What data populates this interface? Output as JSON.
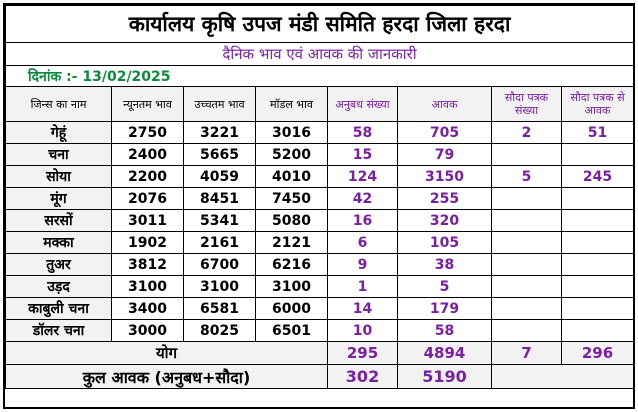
{
  "header": {
    "title": "कार्यालय कृषि उपज मंडी समिति हरदा जिला हरदा",
    "subtitle": "दैनिक भाव एवं आवक की जानकारी",
    "date_label": "दिनांक :- 13/02/2025"
  },
  "columns": {
    "name": "जिन्स का नाम",
    "min_price": "न्यूनतम भाव",
    "max_price": "उच्चतम भाव",
    "modal_price": "मॉडल भाव",
    "contract_count": "अनुबध संख्या",
    "arrival": "आवक",
    "deal_count": "सौदा पत्रक संख्या",
    "deal_arrival": "सौदा पत्रक से आवक"
  },
  "rows": [
    {
      "name": "गेहूं",
      "min": "2750",
      "max": "3221",
      "modal": "3016",
      "contracts": "58",
      "arrival": "705",
      "deals": "2",
      "deal_arrival": "51"
    },
    {
      "name": "चना",
      "min": "2400",
      "max": "5665",
      "modal": "5200",
      "contracts": "15",
      "arrival": "79",
      "deals": "",
      "deal_arrival": ""
    },
    {
      "name": "सोया",
      "min": "2200",
      "max": "4059",
      "modal": "4010",
      "contracts": "124",
      "arrival": "3150",
      "deals": "5",
      "deal_arrival": "245"
    },
    {
      "name": "मूंग",
      "min": "2076",
      "max": "8451",
      "modal": "7450",
      "contracts": "42",
      "arrival": "255",
      "deals": "",
      "deal_arrival": ""
    },
    {
      "name": "सरसों",
      "min": "3011",
      "max": "5341",
      "modal": "5080",
      "contracts": "16",
      "arrival": "320",
      "deals": "",
      "deal_arrival": ""
    },
    {
      "name": "मक्का",
      "min": "1902",
      "max": "2161",
      "modal": "2121",
      "contracts": "6",
      "arrival": "105",
      "deals": "",
      "deal_arrival": ""
    },
    {
      "name": "तुअर",
      "min": "3812",
      "max": "6700",
      "modal": "6216",
      "contracts": "9",
      "arrival": "38",
      "deals": "",
      "deal_arrival": ""
    },
    {
      "name": "उड़द",
      "min": "3100",
      "max": "3100",
      "modal": "3100",
      "contracts": "1",
      "arrival": "5",
      "deals": "",
      "deal_arrival": ""
    },
    {
      "name": "काबुली चना",
      "min": "3400",
      "max": "6581",
      "modal": "6000",
      "contracts": "14",
      "arrival": "179",
      "deals": "",
      "deal_arrival": ""
    },
    {
      "name": "डॉलर चना",
      "min": "3000",
      "max": "8025",
      "modal": "6501",
      "contracts": "10",
      "arrival": "58",
      "deals": "",
      "deal_arrival": ""
    }
  ],
  "total": {
    "label": "योग",
    "contracts": "295",
    "arrival": "4894",
    "deals": "7",
    "deal_arrival": "296"
  },
  "grand_total": {
    "label": "कुल आवक (अनुबध+सौदा)",
    "contracts": "302",
    "arrival": "5190"
  },
  "colors": {
    "purple": "#7a1fa2",
    "green": "#0a8a3a",
    "header_bg": "#f2f2f2"
  }
}
